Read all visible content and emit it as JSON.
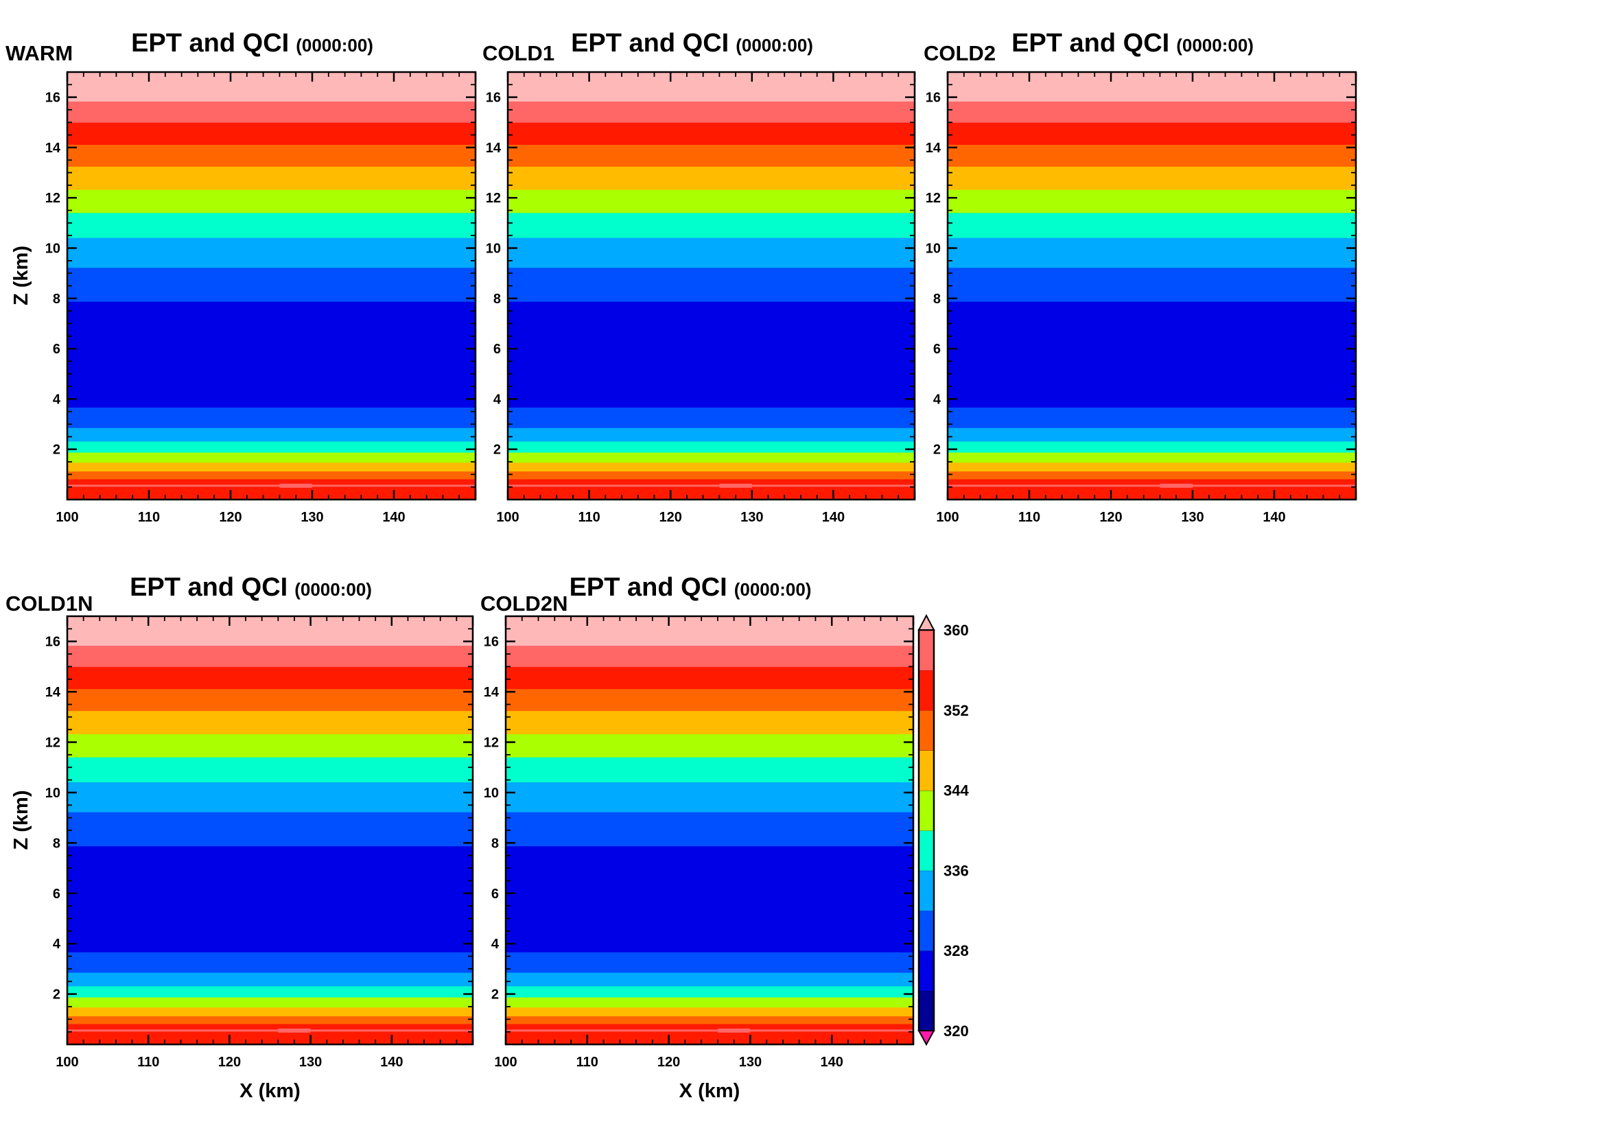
{
  "figure": {
    "colorbar": {
      "min": 320,
      "max": 360,
      "step": 4,
      "tick_labels": [
        "320",
        "328",
        "336",
        "344",
        "352",
        "360"
      ],
      "colors": [
        "#000096",
        "#0000e6",
        "#0050ff",
        "#00aaff",
        "#00ffcc",
        "#aaff00",
        "#ffbb00",
        "#ff6600",
        "#ff1a00",
        "#ff6666"
      ],
      "over_color": "#ffb8b8",
      "under_color": "#ff1aaa"
    }
  },
  "chart_data": [
    {
      "type": "heatmap",
      "case_label": "WARM",
      "title": "EPT and QCI",
      "subtitle": "(0000:00)",
      "xlabel": "",
      "ylabel": "Z (km)",
      "xlim": [
        100,
        150
      ],
      "ylim": [
        0,
        17
      ],
      "x_ticks": [
        "100",
        "110",
        "120",
        "130",
        "140"
      ],
      "y_ticks": [
        "2",
        "4",
        "6",
        "8",
        "10",
        "12",
        "14",
        "16"
      ],
      "variable": "equivalent potential temperature (K)",
      "layers_z_km": [
        {
          "z0": 0.0,
          "z1": 0.82,
          "ept_bin": [
            352,
            356
          ]
        },
        {
          "z0": 0.82,
          "z1": 1.13,
          "ept_bin": [
            348,
            352
          ]
        },
        {
          "z0": 1.13,
          "z1": 1.48,
          "ept_bin": [
            344,
            348
          ]
        },
        {
          "z0": 1.48,
          "z1": 1.88,
          "ept_bin": [
            340,
            344
          ]
        },
        {
          "z0": 1.88,
          "z1": 2.32,
          "ept_bin": [
            336,
            340
          ]
        },
        {
          "z0": 2.32,
          "z1": 2.86,
          "ept_bin": [
            332,
            336
          ]
        },
        {
          "z0": 2.86,
          "z1": 3.67,
          "ept_bin": [
            328,
            332
          ]
        },
        {
          "z0": 3.67,
          "z1": 7.88,
          "ept_bin": [
            324,
            328
          ]
        },
        {
          "z0": 7.88,
          "z1": 9.23,
          "ept_bin": [
            328,
            332
          ]
        },
        {
          "z0": 9.23,
          "z1": 10.42,
          "ept_bin": [
            332,
            336
          ]
        },
        {
          "z0": 10.42,
          "z1": 11.41,
          "ept_bin": [
            336,
            340
          ]
        },
        {
          "z0": 11.41,
          "z1": 12.33,
          "ept_bin": [
            340,
            344
          ]
        },
        {
          "z0": 12.33,
          "z1": 13.25,
          "ept_bin": [
            344,
            348
          ]
        },
        {
          "z0": 13.25,
          "z1": 14.12,
          "ept_bin": [
            348,
            352
          ]
        },
        {
          "z0": 14.12,
          "z1": 15.0,
          "ept_bin": [
            352,
            356
          ]
        },
        {
          "z0": 15.0,
          "z1": 15.84,
          "ept_bin": [
            356,
            360
          ]
        },
        {
          "z0": 15.84,
          "z1": 17.0,
          "ept_bin": [
            360,
            999
          ]
        }
      ],
      "thin_layer": {
        "z_km": 0.55,
        "ept_bin": [
          356,
          360
        ],
        "bump_x_km": [
          126,
          130
        ]
      }
    },
    {
      "type": "heatmap",
      "case_label": "COLD1",
      "title": "EPT and QCI",
      "subtitle": "(0000:00)",
      "xlabel": "",
      "ylabel": "",
      "xlim": [
        100,
        150
      ],
      "ylim": [
        0,
        17
      ],
      "x_ticks": [
        "100",
        "110",
        "120",
        "130",
        "140"
      ],
      "y_ticks": [
        "2",
        "4",
        "6",
        "8",
        "10",
        "12",
        "14",
        "16"
      ],
      "same_layers_as": "WARM"
    },
    {
      "type": "heatmap",
      "case_label": "COLD2",
      "title": "EPT and QCI",
      "subtitle": "(0000:00)",
      "xlabel": "",
      "ylabel": "",
      "xlim": [
        100,
        150
      ],
      "ylim": [
        0,
        17
      ],
      "x_ticks": [
        "100",
        "110",
        "120",
        "130",
        "140"
      ],
      "y_ticks": [
        "2",
        "4",
        "6",
        "8",
        "10",
        "12",
        "14",
        "16"
      ],
      "same_layers_as": "WARM"
    },
    {
      "type": "heatmap",
      "case_label": "COLD1N",
      "title": "EPT and QCI",
      "subtitle": "(0000:00)",
      "xlabel": "X (km)",
      "ylabel": "Z (km)",
      "xlim": [
        100,
        150
      ],
      "ylim": [
        0,
        17
      ],
      "x_ticks": [
        "100",
        "110",
        "120",
        "130",
        "140"
      ],
      "y_ticks": [
        "2",
        "4",
        "6",
        "8",
        "10",
        "12",
        "14",
        "16"
      ],
      "same_layers_as": "WARM"
    },
    {
      "type": "heatmap",
      "case_label": "COLD2N",
      "title": "EPT and QCI",
      "subtitle": "(0000:00)",
      "xlabel": "X (km)",
      "ylabel": "",
      "xlim": [
        100,
        150
      ],
      "ylim": [
        0,
        17
      ],
      "x_ticks": [
        "100",
        "110",
        "120",
        "130",
        "140"
      ],
      "y_ticks": [
        "2",
        "4",
        "6",
        "8",
        "10",
        "12",
        "14",
        "16"
      ],
      "same_layers_as": "WARM"
    }
  ]
}
